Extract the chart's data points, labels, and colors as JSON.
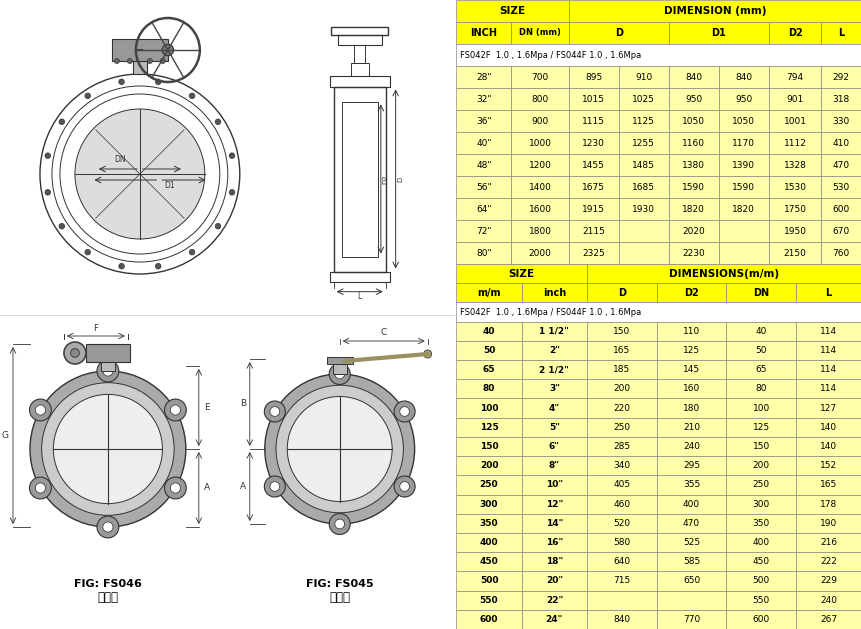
{
  "bg_color": "#ffffff",
  "yellow": "#ffff00",
  "lightyellow": "#ffffaa",
  "white": "#ffffff",
  "table1": {
    "note": "FS042F  1.0 , 1.6Mpa / FS044F 1.0 , 1.6Mpa",
    "rows": [
      [
        "28\"",
        "700",
        "895",
        "910",
        "840",
        "840",
        "794",
        "292"
      ],
      [
        "32\"",
        "800",
        "1015",
        "1025",
        "950",
        "950",
        "901",
        "318"
      ],
      [
        "36\"",
        "900",
        "1115",
        "1125",
        "1050",
        "1050",
        "1001",
        "330"
      ],
      [
        "40\"",
        "1000",
        "1230",
        "1255",
        "1160",
        "1170",
        "1112",
        "410"
      ],
      [
        "48\"",
        "1200",
        "1455",
        "1485",
        "1380",
        "1390",
        "1328",
        "470"
      ],
      [
        "56\"",
        "1400",
        "1675",
        "1685",
        "1590",
        "1590",
        "1530",
        "530"
      ],
      [
        "64\"",
        "1600",
        "1915",
        "1930",
        "1820",
        "1820",
        "1750",
        "600"
      ],
      [
        "72\"",
        "1800",
        "2115",
        "",
        "2020",
        "",
        "1950",
        "670"
      ],
      [
        "80\"",
        "2000",
        "2325",
        "",
        "2230",
        "",
        "2150",
        "760"
      ]
    ]
  },
  "table2": {
    "note": "FS042F  1.0 , 1.6Mpa / FS044F 1.0 , 1.6Mpa",
    "col_labels": [
      "m/m",
      "inch",
      "D",
      "D2",
      "DN",
      "L"
    ],
    "rows": [
      [
        "40",
        "1 1/2\"",
        "150",
        "110",
        "40",
        "114"
      ],
      [
        "50",
        "2\"",
        "165",
        "125",
        "50",
        "114"
      ],
      [
        "65",
        "2 1/2\"",
        "185",
        "145",
        "65",
        "114"
      ],
      [
        "80",
        "3\"",
        "200",
        "160",
        "80",
        "114"
      ],
      [
        "100",
        "4\"",
        "220",
        "180",
        "100",
        "127"
      ],
      [
        "125",
        "5\"",
        "250",
        "210",
        "125",
        "140"
      ],
      [
        "150",
        "6\"",
        "285",
        "240",
        "150",
        "140"
      ],
      [
        "200",
        "8\"",
        "340",
        "295",
        "200",
        "152"
      ],
      [
        "250",
        "10\"",
        "405",
        "355",
        "250",
        "165"
      ],
      [
        "300",
        "12\"",
        "460",
        "400",
        "300",
        "178"
      ],
      [
        "350",
        "14\"",
        "520",
        "470",
        "350",
        "190"
      ],
      [
        "400",
        "16\"",
        "580",
        "525",
        "400",
        "216"
      ],
      [
        "450",
        "18\"",
        "640",
        "585",
        "450",
        "222"
      ],
      [
        "500",
        "20\"",
        "715",
        "650",
        "500",
        "229"
      ],
      [
        "550",
        "22\"",
        "",
        "",
        "550",
        "240"
      ],
      [
        "600",
        "24\"",
        "840",
        "770",
        "600",
        "267"
      ]
    ]
  },
  "fig1_label": "FIG: FS046",
  "fig1_sublabel": "齒輪式",
  "fig2_label": "FIG: FS045",
  "fig2_sublabel": "把手式"
}
